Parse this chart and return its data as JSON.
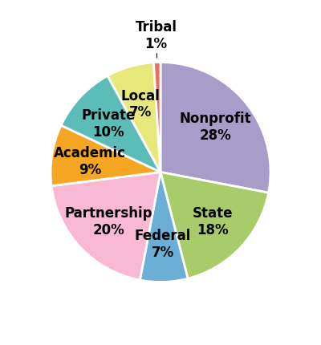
{
  "labels": [
    "Nonprofit",
    "State",
    "Federal",
    "Partnership",
    "Academic",
    "Private",
    "Local",
    "Tribal"
  ],
  "values": [
    28,
    18,
    7,
    20,
    9,
    10,
    7,
    1
  ],
  "colors": [
    "#a89dc8",
    "#a8cc6a",
    "#6baed6",
    "#f9b8d4",
    "#f5a623",
    "#5bbcb8",
    "#e8e87a",
    "#e87060"
  ],
  "startangle": 90,
  "label_fontsize": 12,
  "label_fontweight": "bold",
  "figsize": [
    4.0,
    4.31
  ],
  "dpi": 100,
  "pctdistance": 0.65,
  "wedge_edge_color": "white",
  "wedge_linewidth": 2.0
}
